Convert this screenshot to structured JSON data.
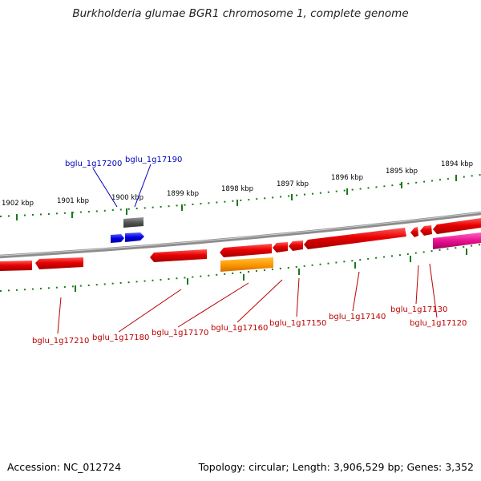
{
  "title": "Burkholderia glumae BGR1 chromosome 1, complete genome",
  "footer": {
    "accession": "Accession: NC_012724",
    "summary": "Topology: circular; Length: 3,906,529 bp; Genes: 3,352"
  },
  "colors": {
    "backbone": "#8a8a8a",
    "tick": "#1a7a1a",
    "forward_label": "#0000bb",
    "reverse_label": "#bb0000"
  },
  "ticks": [
    "1902 kbp",
    "1901 kbp",
    "1900 kbp",
    "1899 kbp",
    "1898 kbp",
    "1897 kbp",
    "1896 kbp",
    "1895 kbp",
    "1894 kbp"
  ],
  "labels": {
    "top": [
      "bglu_1g17200",
      "bglu_1g17190"
    ],
    "bottom": [
      "bglu_1g17210",
      "bglu_1g17180",
      "bglu_1g17170",
      "bglu_1g17160",
      "bglu_1g17150",
      "bglu_1g17140",
      "bglu_1g17130",
      "bglu_1g17120"
    ]
  }
}
